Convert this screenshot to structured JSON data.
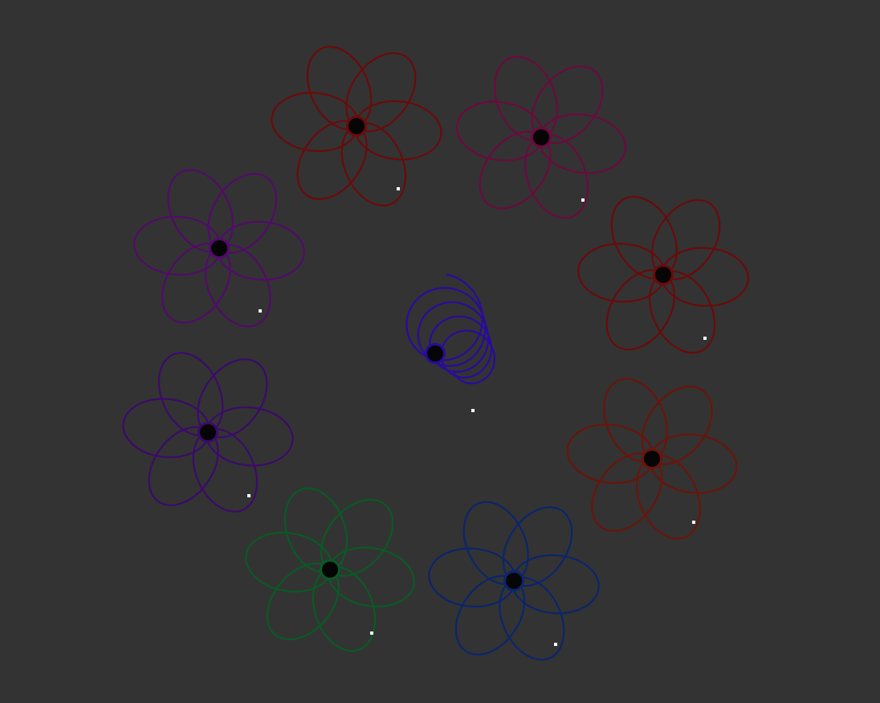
{
  "background_color": "#333333",
  "hub_color": "#050505",
  "tracer_dot_color": "#ffffff",
  "flowers": [
    {
      "id": "flower-crimson-top",
      "color": "#6b0a0a",
      "petals": 6
    },
    {
      "id": "flower-magenta-top",
      "color": "#6b0a3e",
      "petals": 6
    },
    {
      "id": "flower-red-right-upper",
      "color": "#6b0a0a",
      "petals": 6
    },
    {
      "id": "flower-red-right-lower",
      "color": "#6b140a",
      "petals": 6
    },
    {
      "id": "flower-blue-bottom",
      "color": "#0a256b",
      "petals": 6
    },
    {
      "id": "flower-green-bottom",
      "color": "#0a5a25",
      "petals": 6
    },
    {
      "id": "flower-violet-left-lower",
      "color": "#3b0a6b",
      "petals": 6
    },
    {
      "id": "flower-purple-left-upper",
      "color": "#520a6b",
      "petals": 6
    }
  ],
  "spiral": {
    "id": "center-spiral",
    "color": "#2a0a9e",
    "loops": 5
  }
}
